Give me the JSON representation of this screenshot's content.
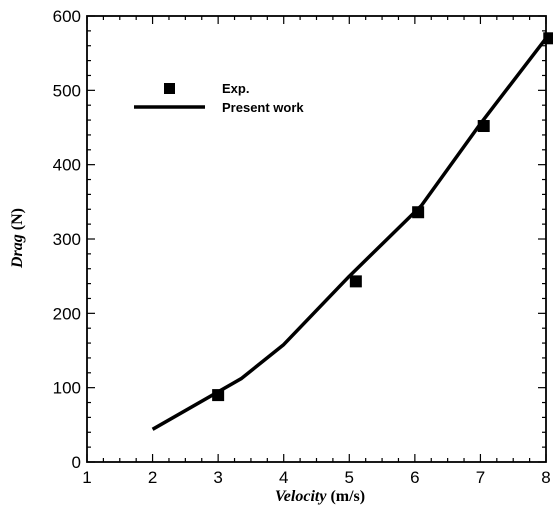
{
  "chart_data": {
    "type": "scatter",
    "xlabel_italic": "Velocity",
    "xlabel_unit": "(m/s)",
    "ylabel_italic": "Drag",
    "ylabel_unit": "(N)",
    "xlim": [
      1,
      8
    ],
    "ylim": [
      0,
      600
    ],
    "xticks": [
      1,
      2,
      3,
      4,
      5,
      6,
      7,
      8
    ],
    "yticks": [
      0,
      100,
      200,
      300,
      400,
      500,
      600
    ],
    "grid": false,
    "legend_position": "top-left",
    "series": [
      {
        "name": "Exp.",
        "type": "scatter",
        "marker": "square",
        "color": "#000000",
        "points": [
          {
            "x": 3.0,
            "y": 90
          },
          {
            "x": 5.1,
            "y": 243
          },
          {
            "x": 6.05,
            "y": 336
          },
          {
            "x": 7.05,
            "y": 452
          },
          {
            "x": 8.05,
            "y": 570
          }
        ]
      },
      {
        "name": "Present work",
        "type": "line",
        "color": "#000000",
        "points": [
          {
            "x": 2.0,
            "y": 44
          },
          {
            "x": 3.35,
            "y": 112
          },
          {
            "x": 4.0,
            "y": 158
          },
          {
            "x": 5.0,
            "y": 250
          },
          {
            "x": 6.1,
            "y": 345
          },
          {
            "x": 7.0,
            "y": 455
          },
          {
            "x": 8.0,
            "y": 570
          }
        ]
      }
    ]
  }
}
